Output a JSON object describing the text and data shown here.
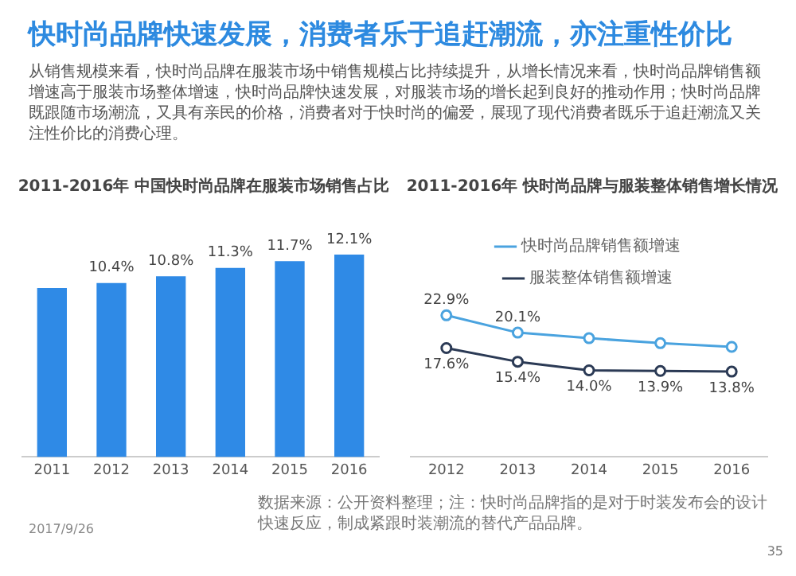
{
  "chart_data": [
    {
      "type": "other",
      "title": "快时尚品牌快速发展，消费者乐于追赶潮流，亦注重性价比",
      "subtitle": "从销售规模来看，快时尚品牌在服装市场中销售规模占比持续提升，从增长情况来看，快时尚品牌销售额增速高于服装市场整体增速，快时尚品牌快速发展，对服装市场的增长起到良好的推动作用；快时尚品牌既跟随市场潮流，又具有亲民的价格，消费者对于快时尚的偏爱，展现了现代消费者既乐于追赶潮流又关注性价比的消费心理。"
    },
    {
      "type": "bar",
      "title": "2011-2016年 中国快时尚品牌在服装市场销售占比",
      "categories": [
        "2011",
        "2012",
        "2013",
        "2014",
        "2015",
        "2016"
      ],
      "values": [
        10.1,
        10.4,
        10.8,
        11.3,
        11.7,
        12.1
      ],
      "value_labels": [
        null,
        "10.4%",
        "10.8%",
        "11.3%",
        "11.7%",
        "12.1%"
      ],
      "color": "#2f8ae6",
      "tick_labels": "x",
      "grid": false,
      "annotations": [
        "2017/9/26"
      ]
    },
    {
      "type": "line",
      "title": "2011-2016年 快时尚品牌与服装整体销售增长情况",
      "categories": [
        "2012",
        "2013",
        "2014",
        "2015",
        "2016"
      ],
      "tick_labels": "x",
      "grid": false,
      "legend": "top",
      "marker": "circle",
      "series": [
        {
          "name": "快时尚品牌销售额增速",
          "color": "#4aa3df",
          "values": [
            22.9,
            20.1,
            19.2,
            18.4,
            17.8
          ],
          "value_labels": [
            "22.9%",
            "20.1%",
            null,
            null,
            null
          ]
        },
        {
          "name": "服装整体销售额增速",
          "color": "#2b3a55",
          "values": [
            17.6,
            15.4,
            14.0,
            13.9,
            13.8
          ],
          "value_labels": [
            "17.6%",
            "15.4%",
            "14.0%",
            "13.9%",
            "13.8%"
          ]
        }
      ],
      "annotations": [
        "数据来源：公开资料整理；注：快时尚品牌指的是对于时装发布会的设计快速反应，制成紧跟时装潮流的替代产品品牌。",
        "35"
      ]
    }
  ]
}
